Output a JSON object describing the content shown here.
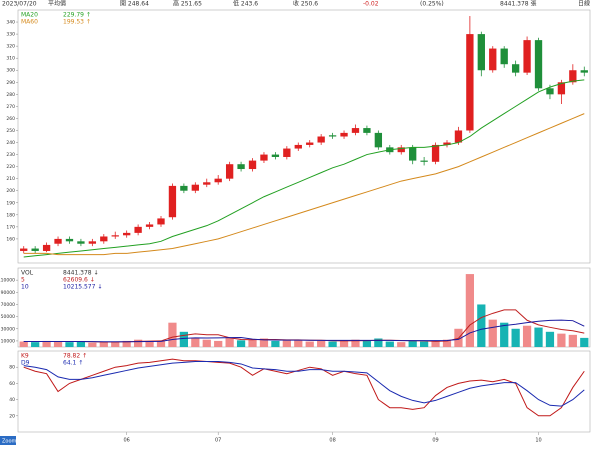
{
  "header": {
    "date": "2023/07/20",
    "items": [
      "平均價",
      "開 248.64",
      "高 251.65",
      "低 243.6",
      "收 250.6",
      "-0.02",
      "(0.25%)",
      "8441.378 張",
      "日線"
    ],
    "zoom": "Zoom"
  },
  "chart_data": [
    {
      "type": "candlestick",
      "categories": [
        null,
        null,
        null,
        null,
        null,
        null,
        null,
        null,
        null,
        "06",
        null,
        null,
        null,
        null,
        null,
        null,
        null,
        "07",
        null,
        null,
        null,
        null,
        null,
        null,
        null,
        null,
        null,
        "08",
        null,
        null,
        null,
        null,
        null,
        null,
        null,
        null,
        "09",
        null,
        null,
        null,
        null,
        null,
        null,
        null,
        null,
        "10",
        null,
        null,
        null,
        null
      ],
      "open": [
        150,
        152,
        150,
        156,
        160,
        158,
        156,
        158,
        162,
        163,
        165,
        170,
        172,
        178,
        204,
        200,
        205,
        207,
        210,
        222,
        218,
        225,
        230,
        228,
        235,
        238,
        240,
        246,
        245,
        248,
        252,
        248,
        236,
        232,
        236,
        225,
        224,
        238,
        240,
        250,
        330,
        300,
        318,
        305,
        298,
        325,
        285,
        280,
        290,
        300
      ],
      "high": [
        154,
        154,
        157,
        162,
        162,
        160,
        160,
        164,
        166,
        167,
        172,
        174,
        179,
        206,
        206,
        207,
        210,
        213,
        224,
        224,
        227,
        232,
        232,
        237,
        240,
        242,
        247,
        248,
        250,
        255,
        254,
        250,
        238,
        238,
        238,
        228,
        240,
        242,
        253,
        345,
        332,
        320,
        320,
        308,
        328,
        327,
        288,
        292,
        305,
        303
      ],
      "low": [
        148,
        148,
        149,
        154,
        156,
        154,
        154,
        156,
        160,
        161,
        163,
        168,
        170,
        176,
        198,
        198,
        203,
        205,
        208,
        216,
        216,
        223,
        226,
        226,
        233,
        236,
        238,
        243,
        243,
        246,
        246,
        234,
        230,
        230,
        222,
        221,
        222,
        236,
        238,
        248,
        295,
        298,
        302,
        295,
        296,
        283,
        276,
        272,
        288,
        295
      ],
      "close": [
        152,
        150,
        155,
        160,
        158,
        156,
        158,
        162,
        163,
        165,
        170,
        172,
        177,
        204,
        200,
        205,
        207,
        210,
        222,
        218,
        225,
        230,
        228,
        235,
        238,
        240,
        245,
        245,
        248,
        252,
        248,
        236,
        232,
        236,
        225,
        224,
        238,
        240,
        250,
        330,
        300,
        318,
        305,
        298,
        325,
        285,
        280,
        290,
        300,
        298
      ],
      "up_color": "#e02020",
      "down_color": "#1f8f3a",
      "series": [
        {
          "name": "MA20",
          "legend_value": "229.79 ↑",
          "color": "#22a022",
          "values": [
            145,
            146,
            147,
            148,
            149,
            150,
            151,
            152,
            153,
            154,
            155,
            156,
            158,
            162,
            165,
            168,
            171,
            175,
            180,
            185,
            190,
            195,
            199,
            203,
            207,
            211,
            215,
            219,
            222,
            226,
            230,
            232,
            234,
            235,
            236,
            236,
            237,
            238,
            240,
            245,
            252,
            258,
            264,
            270,
            276,
            282,
            286,
            289,
            291,
            292
          ]
        },
        {
          "name": "MA60",
          "legend_value": "199.53 ↑",
          "color": "#d4891c",
          "values": [
            148,
            148,
            148,
            147,
            147,
            147,
            147,
            147,
            148,
            148,
            149,
            150,
            151,
            152,
            154,
            156,
            158,
            160,
            163,
            166,
            169,
            172,
            175,
            178,
            181,
            184,
            187,
            190,
            193,
            196,
            199,
            202,
            205,
            208,
            210,
            212,
            214,
            217,
            220,
            224,
            228,
            232,
            236,
            240,
            244,
            248,
            252,
            256,
            260,
            264
          ]
        }
      ],
      "ylim": [
        140,
        350
      ],
      "yticks": [
        160,
        170,
        180,
        190,
        200,
        210,
        220,
        230,
        240,
        250,
        260,
        270,
        280,
        290,
        300,
        310,
        320,
        330,
        340
      ]
    },
    {
      "type": "bar",
      "title": "VOL",
      "title_value": "8441.378 ↓",
      "values": [
        9000,
        8000,
        10000,
        9000,
        8000,
        9000,
        7000,
        8000,
        9000,
        10000,
        12000,
        9000,
        10000,
        40000,
        25000,
        14000,
        12000,
        10000,
        15000,
        11000,
        12000,
        14000,
        10000,
        12000,
        11000,
        9000,
        10000,
        9000,
        11000,
        12000,
        10000,
        14000,
        9000,
        8000,
        10000,
        9000,
        10000,
        12000,
        30000,
        120000,
        70000,
        45000,
        40000,
        30000,
        35000,
        32000,
        25000,
        22000,
        20000,
        15000
      ],
      "up_color": "#f08a8a",
      "down_color": "#17b3b3",
      "series": [
        {
          "name": "5",
          "legend_value": "62609.6 ↓",
          "color": "#c02020",
          "values": [
            9000,
            9000,
            9000,
            9000,
            9000,
            9000,
            8600,
            8200,
            8200,
            8600,
            9200,
            9600,
            10000,
            16200,
            19200,
            21600,
            20200,
            20200,
            15200,
            12400,
            12000,
            12400,
            12400,
            11800,
            11800,
            11200,
            11200,
            10200,
            10000,
            10200,
            10400,
            11200,
            11200,
            10600,
            10200,
            10000,
            9200,
            9800,
            14200,
            36200,
            48400,
            55400,
            61000,
            61000,
            44000,
            36400,
            32400,
            28800,
            26800,
            22800
          ]
        },
        {
          "name": "10",
          "legend_value": "10215.577 ↓",
          "color": "#1a1aa0",
          "values": [
            9000,
            9000,
            9000,
            9000,
            9000,
            9000,
            8800,
            8700,
            8700,
            8700,
            8900,
            9000,
            9200,
            12300,
            14100,
            15100,
            14800,
            15000,
            15500,
            15700,
            12900,
            11800,
            11600,
            11400,
            11300,
            11100,
            10900,
            10800,
            10900,
            10900,
            10800,
            11000,
            10800,
            10500,
            10400,
            10400,
            10400,
            10700,
            12500,
            23200,
            29300,
            32300,
            35400,
            37400,
            40100,
            42300,
            43800,
            44300,
            43300,
            34200
          ]
        }
      ],
      "ylim": [
        0,
        130000
      ],
      "yticks": [
        10000,
        30000,
        50000,
        70000,
        90000,
        110000
      ]
    },
    {
      "type": "line",
      "series": [
        {
          "name": "K9",
          "legend_value": "78.82 ↑",
          "color": "#c01818",
          "values": [
            80,
            75,
            72,
            50,
            60,
            65,
            70,
            75,
            80,
            82,
            85,
            86,
            88,
            90,
            88,
            88,
            87,
            86,
            85,
            80,
            70,
            78,
            75,
            72,
            76,
            80,
            78,
            70,
            75,
            72,
            70,
            40,
            30,
            30,
            28,
            30,
            45,
            55,
            60,
            63,
            64,
            62,
            65,
            60,
            30,
            20,
            20,
            30,
            55,
            75
          ]
        },
        {
          "name": "D9",
          "legend_value": "64.1 ↑",
          "color": "#1a2ab0",
          "values": [
            82,
            80,
            77,
            68,
            65,
            65,
            67,
            70,
            73,
            76,
            79,
            81,
            83,
            85,
            86,
            87,
            87,
            87,
            86,
            84,
            79,
            78,
            77,
            75,
            75,
            77,
            77,
            75,
            75,
            74,
            73,
            62,
            51,
            44,
            39,
            36,
            39,
            44,
            49,
            54,
            57,
            59,
            61,
            61,
            51,
            40,
            33,
            32,
            40,
            52
          ]
        }
      ],
      "ylim": [
        0,
        100
      ],
      "yticks": [
        20,
        40,
        60,
        80
      ]
    }
  ]
}
